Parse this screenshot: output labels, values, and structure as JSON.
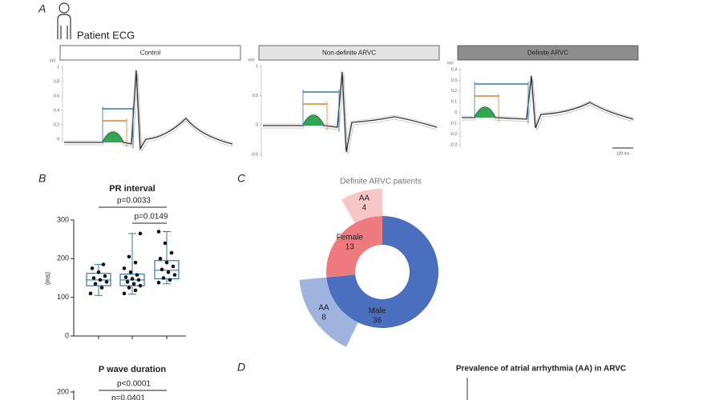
{
  "panel_a": {
    "label": "A",
    "title": "Patient ECG",
    "unit": "mV",
    "scale_bar": "100 ms",
    "groups": [
      {
        "name": "Control",
        "yticks": [
          1,
          0.8,
          0.6,
          0.4,
          0.2,
          0
        ]
      },
      {
        "name": "Non-definite ARVC",
        "yticks": [
          1,
          0.5,
          0,
          -0.5
        ]
      },
      {
        "name": "Definite ARVC",
        "yticks": [
          0.4,
          0.3,
          0.2,
          0.1,
          0,
          -0.1,
          -0.2,
          -0.3
        ]
      }
    ]
  },
  "panel_b": {
    "label": "B",
    "charts": [
      {
        "title": "PR interval",
        "ylabel": "(ms)",
        "ylim": [
          0,
          300
        ],
        "yticks": [
          0,
          100,
          200,
          300
        ],
        "boxes": [
          {
            "min": 105,
            "q1": 130,
            "median": 145,
            "q3": 162,
            "max": 185,
            "points": [
              110,
              125,
              135,
              140,
              145,
              150,
              155,
              165,
              175,
              185
            ]
          },
          {
            "min": 108,
            "q1": 130,
            "median": 145,
            "q3": 160,
            "max": 265,
            "points": [
              110,
              118,
              125,
              130,
              135,
              140,
              145,
              148,
              152,
              158,
              165,
              175,
              190,
              205,
              265
            ]
          },
          {
            "min": 135,
            "q1": 148,
            "median": 170,
            "q3": 195,
            "max": 270,
            "points": [
              138,
              145,
              150,
              158,
              165,
              172,
              180,
              190,
              200,
              215,
              240,
              270
            ]
          }
        ],
        "pvalues": [
          "p=0.0033",
          "p=0.0149"
        ]
      },
      {
        "title": "P wave duration",
        "yticks": [
          200
        ],
        "pvalues": [
          "p<0.0001",
          "p=0.0401"
        ]
      }
    ]
  },
  "panel_c": {
    "label": "C",
    "title": "Definite ARVC patients",
    "segments": [
      {
        "name": "Male",
        "value": 36,
        "color": "#4a6fbf"
      },
      {
        "name": "Female",
        "value": 13,
        "color": "#ef7a7e"
      }
    ],
    "subsegments": [
      {
        "name": "AA",
        "value": 8,
        "color": "#93acdb"
      },
      {
        "name": "AA",
        "value": 4,
        "color": "#f6c1c2"
      }
    ]
  },
  "panel_d": {
    "label": "D",
    "title": "Prevalence of atrial arrhythmia (AA) in ARVC"
  }
}
